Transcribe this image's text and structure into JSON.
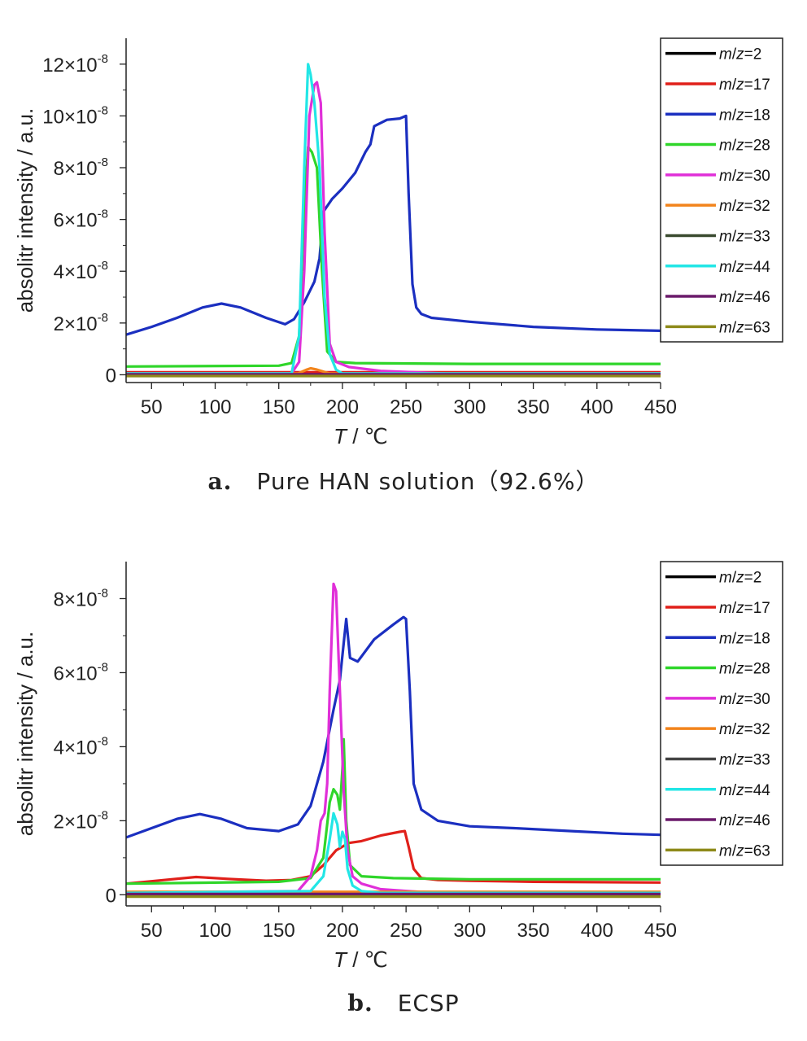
{
  "chart_data": [
    {
      "id": "a",
      "type": "line",
      "caption_letter": "a.",
      "caption": "Pure HAN solution（92.6%）",
      "xlabel": "T / ℃",
      "ylabel": "absolitr intensity / a.u.",
      "xlim": [
        30,
        450
      ],
      "ylim": [
        -0.3,
        13
      ],
      "xticks": [
        "50",
        "100",
        "150",
        "200",
        "250",
        "300",
        "350",
        "400",
        "450"
      ],
      "xtick_values": [
        50,
        100,
        150,
        200,
        250,
        300,
        350,
        400,
        450
      ],
      "yticks": [
        {
          "value": 0,
          "mant": "0",
          "exp": ""
        },
        {
          "value": 2,
          "mant": "2×10",
          "exp": "-8"
        },
        {
          "value": 4,
          "mant": "4×10",
          "exp": "-8"
        },
        {
          "value": 6,
          "mant": "6×10",
          "exp": "-8"
        },
        {
          "value": 8,
          "mant": "8×10",
          "exp": "-8"
        },
        {
          "value": 10,
          "mant": "10×10",
          "exp": "-8"
        },
        {
          "value": 12,
          "mant": "12×10",
          "exp": "-8"
        }
      ],
      "y_unit_note": "y values in units of 10^-8",
      "legend_position": "right",
      "series": [
        {
          "name": "m/z=2",
          "color": "#000000",
          "x": [
            30,
            450
          ],
          "y": [
            0.05,
            0.05
          ]
        },
        {
          "name": "m/z=17",
          "color": "#e0201a",
          "x": [
            30,
            450
          ],
          "y": [
            0.1,
            0.1
          ]
        },
        {
          "name": "m/z=18",
          "color": "#1b2fc0",
          "x": [
            30,
            50,
            70,
            90,
            105,
            120,
            140,
            155,
            162,
            170,
            178,
            182,
            185,
            192,
            200,
            210,
            218,
            222,
            225,
            235,
            245,
            250,
            252,
            255,
            258,
            262,
            270,
            300,
            350,
            400,
            450
          ],
          "y": [
            1.55,
            1.85,
            2.2,
            2.6,
            2.75,
            2.6,
            2.2,
            1.95,
            2.15,
            2.8,
            3.6,
            4.5,
            6.3,
            6.8,
            7.2,
            7.8,
            8.6,
            8.9,
            9.6,
            9.85,
            9.9,
            10.0,
            7.0,
            3.5,
            2.6,
            2.35,
            2.2,
            2.05,
            1.85,
            1.75,
            1.7
          ]
        },
        {
          "name": "m/z=28",
          "color": "#2fd62a",
          "x": [
            30,
            150,
            160,
            166,
            170,
            173,
            176,
            180,
            184,
            188,
            195,
            210,
            300,
            450
          ],
          "y": [
            0.32,
            0.35,
            0.45,
            1.5,
            6.5,
            8.8,
            8.6,
            8.0,
            4.0,
            0.9,
            0.5,
            0.45,
            0.42,
            0.42
          ]
        },
        {
          "name": "m/z=30",
          "color": "#e02fd8",
          "x": [
            30,
            160,
            166,
            170,
            174,
            178,
            180,
            183,
            186,
            190,
            195,
            205,
            230,
            280
          ],
          "y": [
            0.05,
            0.05,
            0.5,
            4.0,
            10.0,
            11.2,
            11.3,
            10.5,
            5.5,
            1.2,
            0.5,
            0.3,
            0.15,
            0.05
          ]
        },
        {
          "name": "m/z=32",
          "color": "#f2841c",
          "x": [
            30,
            165,
            172,
            175,
            180,
            190,
            450
          ],
          "y": [
            0.05,
            0.05,
            0.2,
            0.25,
            0.2,
            0.05,
            0.05
          ]
        },
        {
          "name": "m/z=33",
          "color": "#3a4a30",
          "x": [
            30,
            450
          ],
          "y": [
            0.0,
            0.0
          ]
        },
        {
          "name": "m/z=44",
          "color": "#22e6e6",
          "x": [
            30,
            160,
            166,
            170,
            173,
            175,
            178,
            182,
            186,
            190,
            195,
            200,
            450
          ],
          "y": [
            0.05,
            0.05,
            1.5,
            8.0,
            12.0,
            11.6,
            10.5,
            8.0,
            3.0,
            0.8,
            0.2,
            0.05,
            0.05
          ]
        },
        {
          "name": "m/z=46",
          "color": "#6a1a6a",
          "x": [
            30,
            450
          ],
          "y": [
            0.02,
            0.02
          ]
        },
        {
          "name": "m/z=63",
          "color": "#8e8a1a",
          "x": [
            30,
            450
          ],
          "y": [
            -0.05,
            -0.05
          ]
        }
      ]
    },
    {
      "id": "b",
      "type": "line",
      "caption_letter": "b.",
      "caption": "ECSP",
      "xlabel": "T / ℃",
      "ylabel": "absolitr intensity / a.u.",
      "xlim": [
        30,
        450
      ],
      "ylim": [
        -0.3,
        9
      ],
      "xticks": [
        "50",
        "100",
        "150",
        "200",
        "250",
        "300",
        "350",
        "400",
        "450"
      ],
      "xtick_values": [
        50,
        100,
        150,
        200,
        250,
        300,
        350,
        400,
        450
      ],
      "yticks": [
        {
          "value": 0,
          "mant": "0",
          "exp": ""
        },
        {
          "value": 2,
          "mant": "2×10",
          "exp": "-8"
        },
        {
          "value": 4,
          "mant": "4×10",
          "exp": "-8"
        },
        {
          "value": 6,
          "mant": "6×10",
          "exp": "-8"
        },
        {
          "value": 8,
          "mant": "8×10",
          "exp": "-8"
        }
      ],
      "y_unit_note": "y values in units of 10^-8",
      "legend_position": "right",
      "series": [
        {
          "name": "m/z=2",
          "color": "#000000",
          "x": [
            30,
            450
          ],
          "y": [
            0.0,
            0.0
          ]
        },
        {
          "name": "m/z=17",
          "color": "#e0201a",
          "x": [
            30,
            60,
            85,
            110,
            140,
            160,
            175,
            185,
            195,
            205,
            215,
            230,
            245,
            249,
            252,
            256,
            262,
            275,
            300,
            350,
            450
          ],
          "y": [
            0.3,
            0.4,
            0.48,
            0.43,
            0.38,
            0.4,
            0.5,
            0.8,
            1.2,
            1.4,
            1.45,
            1.6,
            1.7,
            1.72,
            1.3,
            0.7,
            0.45,
            0.4,
            0.38,
            0.35,
            0.33
          ]
        },
        {
          "name": "m/z=18",
          "color": "#1b2fc0",
          "x": [
            30,
            50,
            70,
            88,
            105,
            125,
            150,
            165,
            175,
            185,
            193,
            198,
            201,
            203,
            206,
            212,
            225,
            240,
            248,
            250,
            253,
            256,
            262,
            275,
            300,
            335,
            380,
            420,
            450
          ],
          "y": [
            1.55,
            1.8,
            2.05,
            2.18,
            2.05,
            1.8,
            1.72,
            1.9,
            2.4,
            3.6,
            5.0,
            5.8,
            6.8,
            7.45,
            6.4,
            6.3,
            6.9,
            7.3,
            7.5,
            7.45,
            5.5,
            3.0,
            2.3,
            2.0,
            1.85,
            1.8,
            1.72,
            1.65,
            1.62
          ]
        },
        {
          "name": "m/z=28",
          "color": "#2fd62a",
          "x": [
            30,
            150,
            175,
            185,
            190,
            193,
            196,
            198,
            200,
            201,
            203,
            206,
            215,
            240,
            300,
            450
          ],
          "y": [
            0.3,
            0.35,
            0.45,
            1.0,
            2.5,
            2.85,
            2.7,
            2.3,
            3.4,
            4.2,
            2.0,
            0.8,
            0.5,
            0.45,
            0.42,
            0.42
          ]
        },
        {
          "name": "m/z=30",
          "color": "#e02fd8",
          "x": [
            30,
            165,
            175,
            180,
            183,
            186,
            188,
            190,
            193,
            195,
            198,
            201,
            204,
            208,
            215,
            230,
            260,
            300
          ],
          "y": [
            0.05,
            0.1,
            0.5,
            1.2,
            2.0,
            2.2,
            3.0,
            5.5,
            8.4,
            8.2,
            5.5,
            2.8,
            1.2,
            0.5,
            0.3,
            0.15,
            0.08,
            0.05
          ]
        },
        {
          "name": "m/z=32",
          "color": "#f2841c",
          "x": [
            30,
            450
          ],
          "y": [
            0.08,
            0.08
          ]
        },
        {
          "name": "m/z=33",
          "color": "#444444",
          "x": [
            30,
            450
          ],
          "y": [
            0.0,
            0.0
          ]
        },
        {
          "name": "m/z=44",
          "color": "#22e6e6",
          "x": [
            30,
            175,
            185,
            190,
            193,
            196,
            198,
            200,
            202,
            204,
            208,
            215,
            230,
            450
          ],
          "y": [
            0.05,
            0.1,
            0.5,
            1.5,
            2.2,
            1.9,
            1.3,
            1.7,
            1.5,
            0.7,
            0.25,
            0.1,
            0.05,
            0.05
          ]
        },
        {
          "name": "m/z=46",
          "color": "#6a1a6a",
          "x": [
            30,
            450
          ],
          "y": [
            0.02,
            0.02
          ]
        },
        {
          "name": "m/z=63",
          "color": "#8e8a1a",
          "x": [
            30,
            450
          ],
          "y": [
            -0.05,
            -0.05
          ]
        }
      ]
    }
  ]
}
